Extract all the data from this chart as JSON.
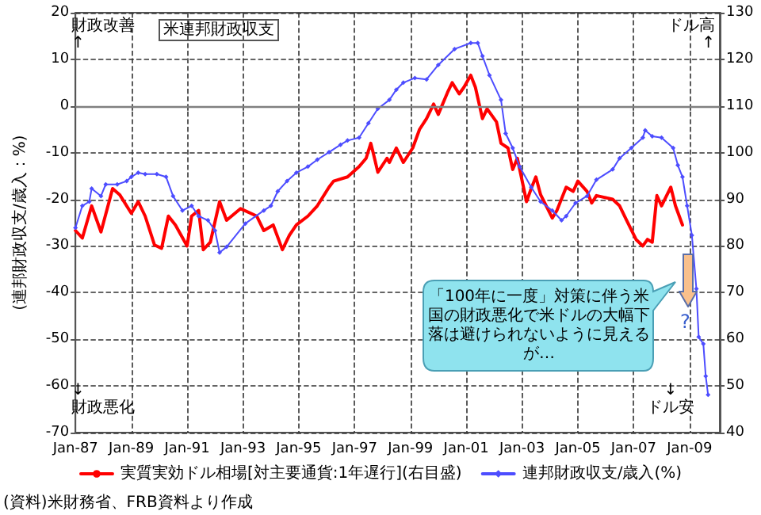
{
  "chart_data": {
    "type": "line",
    "title": "米連邦財政収支",
    "ylabel": "(連邦財政収支/歳入：%)",
    "annotations": [
      "財政改善\n↑",
      "ドル高\n↑",
      "↓\n財政悪化",
      "↓\nドル安",
      "「100年に一度」対策に伴う米国の財政悪化で米ドルの大幅下落は避けられないように見えるが…",
      "?",
      "(資料)米財務省、FRB資料より作成"
    ],
    "xlim": [
      "1987-01",
      "2010-02"
    ],
    "xticks": [
      {
        "value": "1987-01",
        "label": "Jan-87"
      },
      {
        "value": "1989-01",
        "label": "Jan-89"
      },
      {
        "value": "1991-01",
        "label": "Jan-91"
      },
      {
        "value": "1993-01",
        "label": "Jan-93"
      },
      {
        "value": "1995-01",
        "label": "Jan-95"
      },
      {
        "value": "1997-01",
        "label": "Jan-97"
      },
      {
        "value": "1999-01",
        "label": "Jan-99"
      },
      {
        "value": "2001-01",
        "label": "Jan-01"
      },
      {
        "value": "2003-01",
        "label": "Jan-03"
      },
      {
        "value": "2005-01",
        "label": "Jan-05"
      },
      {
        "value": "2007-01",
        "label": "Jan-07"
      },
      {
        "value": "2009-01",
        "label": "Jan-09"
      }
    ],
    "ylim": [
      -70,
      20
    ],
    "yticks": [
      -70,
      -60,
      -50,
      -40,
      -30,
      -20,
      -10,
      0,
      10,
      20
    ],
    "y2lim": [
      40,
      130
    ],
    "y2ticks": [
      40,
      50,
      60,
      70,
      80,
      90,
      100,
      110,
      120,
      130
    ],
    "grid": true,
    "legend": "bottom",
    "ref_lines": [
      {
        "axis": "y",
        "value": 0,
        "color": "#808080",
        "line_style": "solid"
      }
    ],
    "series": [
      {
        "name": "実質実効ドル相場[対主要通貨:1年遅行](右目盛)",
        "color": "#ff0000",
        "axis": "y2",
        "marker": "none",
        "x": [
          "1987-01",
          "1987-04",
          "1987-08",
          "1987-12",
          "1988-05",
          "1988-08",
          "1989-01",
          "1989-04",
          "1989-07",
          "1989-11",
          "1990-02",
          "1990-05",
          "1990-08",
          "1991-01",
          "1991-03",
          "1991-06",
          "1991-08",
          "1991-11",
          "1992-03",
          "1992-06",
          "1992-12",
          "1993-07",
          "1993-10",
          "1994-02",
          "1994-06",
          "1994-09",
          "1994-12",
          "1995-05",
          "1995-09",
          "1996-02",
          "1996-04",
          "1996-10",
          "1997-03",
          "1997-06",
          "1997-08",
          "1997-09",
          "1997-11",
          "1998-03",
          "1998-04",
          "1998-07",
          "1998-10",
          "1999-02",
          "1999-05",
          "1999-08",
          "1999-11",
          "2000-01",
          "2000-05",
          "2000-07",
          "2000-10",
          "2000-12",
          "2001-03",
          "2001-05",
          "2001-08",
          "2001-10",
          "2002-02",
          "2002-04",
          "2002-07",
          "2002-09",
          "2002-11",
          "2003-03",
          "2003-05",
          "2003-07",
          "2003-09",
          "2004-02",
          "2004-04",
          "2004-08",
          "2004-11",
          "2005-01",
          "2005-05",
          "2005-07",
          "2005-09",
          "2006-04",
          "2006-07",
          "2006-10",
          "2007-02",
          "2007-05",
          "2007-07",
          "2007-09",
          "2007-11",
          "2008-01",
          "2008-05",
          "2008-07",
          "2008-10"
        ],
        "values": [
          83.3,
          81.7,
          88.6,
          83,
          92.3,
          91,
          87,
          89.5,
          86.4,
          80.2,
          79.5,
          86.4,
          84.5,
          80,
          86.4,
          87.6,
          79.2,
          80.8,
          89.5,
          85.5,
          88,
          86.4,
          83.3,
          84.5,
          79.2,
          82.3,
          84.5,
          86.4,
          88.6,
          92.6,
          93.9,
          94.8,
          97,
          98.8,
          102,
          100,
          95.8,
          98.8,
          97.9,
          101,
          97.9,
          101,
          105,
          107.3,
          110.4,
          108.2,
          112.9,
          115,
          112.6,
          114,
          116.6,
          114,
          107.3,
          109.4,
          106.6,
          102,
          101,
          96.4,
          98.8,
          89.5,
          92.3,
          94.8,
          91,
          86,
          87.6,
          92.6,
          91.7,
          93.9,
          91.7,
          89.2,
          90.8,
          90,
          88.6,
          85.5,
          81.4,
          80,
          81.4,
          80.8,
          90.8,
          88.6,
          92.6,
          88.6,
          84.5
        ]
      },
      {
        "name": "連邦財政収支/歳入(%)",
        "color": "#4d4dff",
        "marker": "diamond",
        "x": [
          "1987-01",
          "1987-04",
          "1987-07",
          "1987-08",
          "1987-12",
          "1988-02",
          "1988-07",
          "1988-11",
          "1989-01",
          "1989-04",
          "1989-07",
          "1989-12",
          "1990-04",
          "1990-07",
          "1990-11",
          "1991-03",
          "1991-06",
          "1991-10",
          "1992-01",
          "1992-03",
          "1992-06",
          "1993-02",
          "1993-10",
          "1994-01",
          "1994-04",
          "1994-08",
          "1994-12",
          "1995-05",
          "1995-09",
          "1996-02",
          "1996-07",
          "1996-10",
          "1997-03",
          "1997-07",
          "1997-11",
          "1998-04",
          "1998-07",
          "1998-10",
          "1999-03",
          "1999-08",
          "2000-01",
          "2000-08",
          "2001-03",
          "2001-06",
          "2001-08",
          "2001-11",
          "2002-04",
          "2002-06",
          "2002-09",
          "2002-12",
          "2003-05",
          "2003-09",
          "2004-02",
          "2004-06",
          "2004-08",
          "2004-12",
          "2005-05",
          "2005-09",
          "2006-04",
          "2006-07",
          "2006-12",
          "2007-05",
          "2007-06",
          "2007-09",
          "2008-01",
          "2008-06",
          "2008-08",
          "2008-10",
          "2008-12",
          "2009-02",
          "2009-04",
          "2009-05",
          "2009-07",
          "2009-08",
          "2009-09"
        ],
        "values": [
          -26.1,
          -21.4,
          -20.5,
          -17.7,
          -19.3,
          -16.8,
          -16.8,
          -16.1,
          -15.2,
          -14.3,
          -14.6,
          -14.6,
          -15.2,
          -19.3,
          -22.4,
          -21.4,
          -23.6,
          -24.5,
          -26.7,
          -31.4,
          -30.2,
          -25.2,
          -22.4,
          -21.4,
          -18.3,
          -16.1,
          -14.3,
          -13,
          -11.5,
          -9.9,
          -8.3,
          -7.4,
          -6.8,
          -3.7,
          -0.6,
          1.3,
          3.5,
          5,
          6,
          5.7,
          8.8,
          12.2,
          13.5,
          13.5,
          10.7,
          6.6,
          1.3,
          -5.9,
          -9,
          -13,
          -17.4,
          -20.5,
          -22.4,
          -24.5,
          -23.6,
          -20.8,
          -19.3,
          -15.8,
          -13.6,
          -11.2,
          -9,
          -6.8,
          -5.2,
          -6.5,
          -6.8,
          -9,
          -12.7,
          -15.2,
          -21.4,
          -27.7,
          -39.2,
          -49.5,
          -51,
          -57.9,
          -61.9
        ]
      }
    ]
  }
}
